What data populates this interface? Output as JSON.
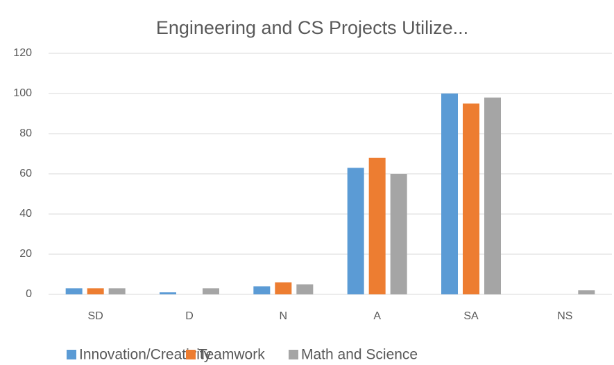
{
  "chart_data": {
    "type": "bar",
    "title": "Engineering and CS Projects Utilize...",
    "categories": [
      "SD",
      "D",
      "N",
      "A",
      "SA",
      "NS"
    ],
    "series": [
      {
        "name": "Innovation/Creativity",
        "color": "#5b9bd5",
        "values": [
          3,
          1,
          4,
          63,
          100,
          0
        ]
      },
      {
        "name": "Teamwork",
        "color": "#ed7d31",
        "values": [
          3,
          0,
          6,
          68,
          95,
          0
        ]
      },
      {
        "name": "Math and Science",
        "color": "#a5a5a5",
        "values": [
          3,
          3,
          5,
          60,
          98,
          2
        ]
      }
    ],
    "ylim": [
      0,
      120
    ],
    "yticks": [
      0,
      20,
      40,
      60,
      80,
      100,
      120
    ],
    "grid": true,
    "legend": "bottom"
  }
}
